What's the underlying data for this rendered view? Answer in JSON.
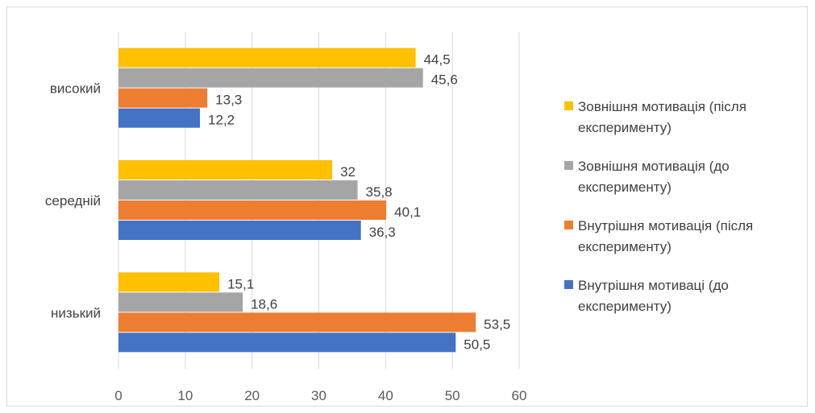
{
  "chart_data": {
    "type": "bar",
    "orientation": "horizontal",
    "title": "",
    "xlabel": "",
    "ylabel": "",
    "categories": [
      "високий",
      "середній",
      "низький"
    ],
    "xlim": [
      0,
      60
    ],
    "xticks": [
      "0",
      "10",
      "20",
      "30",
      "40",
      "50",
      "60"
    ],
    "grid": true,
    "legend_position": "right",
    "series": [
      {
        "name": "Зовнішня мотивація (після експерименту)",
        "color": "#FFC000",
        "values": [
          44.5,
          32,
          15.1
        ],
        "labels": [
          "44,5",
          "32",
          "15,1"
        ]
      },
      {
        "name": "Зовнішня мотивація (до експерименту)",
        "color": "#A5A5A5",
        "values": [
          45.6,
          35.8,
          18.6
        ],
        "labels": [
          "45,6",
          "35,8",
          "18,6"
        ]
      },
      {
        "name": "Внутрішня мотивація (після експерименту)",
        "color": "#ED7D31",
        "values": [
          13.3,
          40.1,
          53.5
        ],
        "labels": [
          "13,3",
          "40,1",
          "53,5"
        ]
      },
      {
        "name": "Внутрішня мотиваці (до експерименту)",
        "color": "#4472C4",
        "values": [
          12.2,
          36.3,
          50.5
        ],
        "labels": [
          "12,2",
          "36,3",
          "50,5"
        ]
      }
    ]
  }
}
